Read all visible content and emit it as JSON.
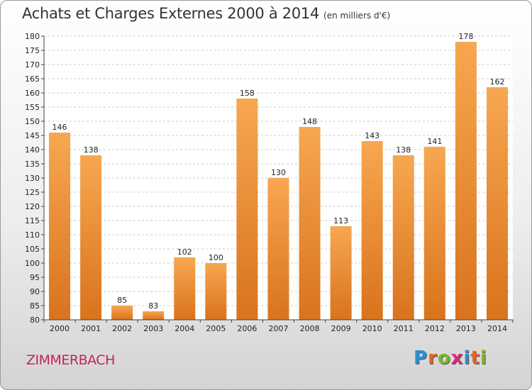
{
  "title": "Achats et Charges Externes 2000 à 2014",
  "subtitle": "(en milliers d'€)",
  "commune": "ZIMMERBACH",
  "brand": {
    "text": "Proxiti",
    "letter_colors": [
      "#2a8fd8",
      "#e8622a",
      "#7ab82a",
      "#d92a7a",
      "#2a8fd8",
      "#e8622a",
      "#7ab82a"
    ]
  },
  "colors": {
    "bar_light": "#f7a750",
    "bar_dark": "#d9731d",
    "brand_red": "#c4245a"
  },
  "chart_data": {
    "type": "bar",
    "title": "Achats et Charges Externes 2000 à 2014",
    "xlabel": "",
    "ylabel": "",
    "categories": [
      "2000",
      "2001",
      "2002",
      "2003",
      "2004",
      "2005",
      "2006",
      "2007",
      "2008",
      "2009",
      "2010",
      "2011",
      "2012",
      "2013",
      "2014"
    ],
    "values": [
      146,
      138,
      85,
      83,
      102,
      100,
      158,
      130,
      148,
      113,
      143,
      138,
      141,
      178,
      162
    ],
    "ylim": [
      80,
      180
    ],
    "ytick_step": 5,
    "grid": true,
    "data_labels": true
  }
}
